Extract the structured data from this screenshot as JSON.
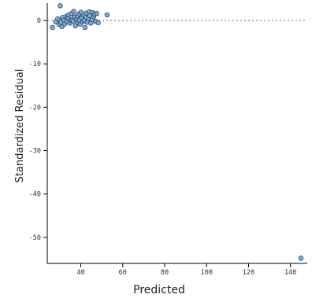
{
  "chart_data": {
    "type": "scatter",
    "title": "",
    "xlabel": "Predicted",
    "ylabel": "Standardized Residual",
    "xlim": [
      24,
      148
    ],
    "ylim": [
      -56,
      4
    ],
    "x_ticks": [
      40,
      60,
      80,
      100,
      120,
      140
    ],
    "y_ticks": [
      0,
      -10,
      -20,
      -30,
      -40,
      -50
    ],
    "x_tick_labels": [
      "40",
      "60",
      "80",
      "100",
      "120",
      "140"
    ],
    "y_tick_labels": [
      "0",
      "-10",
      "-20",
      "-30",
      "-40",
      "-50"
    ],
    "reference_line": {
      "y": 0,
      "style": "dotted"
    },
    "grid": false,
    "colors": {
      "point_fill": "#7fa7cf",
      "point_stroke": "#24466b",
      "axis": "#000000",
      "reference": "#777777"
    },
    "points": [
      {
        "x": 26.5,
        "y": -1.6
      },
      {
        "x": 28.0,
        "y": -0.3
      },
      {
        "x": 29.0,
        "y": 0.4
      },
      {
        "x": 29.6,
        "y": -0.9
      },
      {
        "x": 30.2,
        "y": 3.4
      },
      {
        "x": 30.5,
        "y": -0.4
      },
      {
        "x": 31.0,
        "y": -1.4
      },
      {
        "x": 31.3,
        "y": 0.7
      },
      {
        "x": 32.0,
        "y": 0.1
      },
      {
        "x": 32.3,
        "y": -0.8
      },
      {
        "x": 33.0,
        "y": 0.9
      },
      {
        "x": 33.4,
        "y": -0.2
      },
      {
        "x": 34.0,
        "y": 0.5
      },
      {
        "x": 34.2,
        "y": 1.3
      },
      {
        "x": 34.8,
        "y": -0.6
      },
      {
        "x": 35.1,
        "y": 0.0
      },
      {
        "x": 35.6,
        "y": 1.6
      },
      {
        "x": 35.8,
        "y": 0.2
      },
      {
        "x": 36.3,
        "y": -0.1
      },
      {
        "x": 36.6,
        "y": 2.1
      },
      {
        "x": 37.1,
        "y": 0.8
      },
      {
        "x": 37.4,
        "y": -1.2
      },
      {
        "x": 37.9,
        "y": 0.3
      },
      {
        "x": 38.3,
        "y": 1.0
      },
      {
        "x": 38.6,
        "y": -0.5
      },
      {
        "x": 39.0,
        "y": 1.5
      },
      {
        "x": 39.3,
        "y": 0.1
      },
      {
        "x": 39.7,
        "y": -0.9
      },
      {
        "x": 40.1,
        "y": 1.9
      },
      {
        "x": 40.4,
        "y": 0.6
      },
      {
        "x": 40.9,
        "y": -0.3
      },
      {
        "x": 41.3,
        "y": 1.2
      },
      {
        "x": 41.6,
        "y": 0.0
      },
      {
        "x": 42.0,
        "y": -1.6
      },
      {
        "x": 42.4,
        "y": 0.8
      },
      {
        "x": 42.7,
        "y": 1.7
      },
      {
        "x": 43.1,
        "y": -0.4
      },
      {
        "x": 43.6,
        "y": 0.4
      },
      {
        "x": 44.0,
        "y": 2.0
      },
      {
        "x": 44.3,
        "y": 1.1
      },
      {
        "x": 44.8,
        "y": -0.6
      },
      {
        "x": 45.2,
        "y": 0.2
      },
      {
        "x": 45.7,
        "y": 1.8
      },
      {
        "x": 46.1,
        "y": 0.9
      },
      {
        "x": 46.6,
        "y": 1.4
      },
      {
        "x": 47.1,
        "y": -0.2
      },
      {
        "x": 47.6,
        "y": 1.6
      },
      {
        "x": 48.3,
        "y": -0.5
      },
      {
        "x": 52.5,
        "y": 1.3
      },
      {
        "x": 145.0,
        "y": -54.8
      }
    ]
  }
}
